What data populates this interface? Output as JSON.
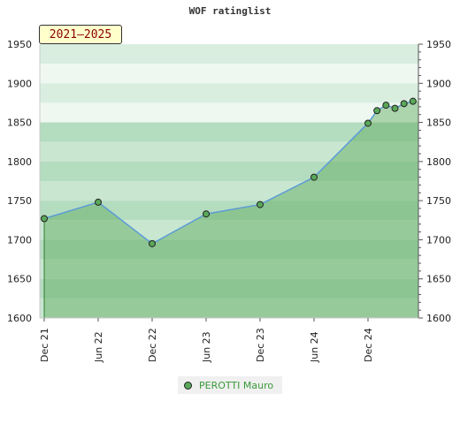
{
  "chart_data": {
    "type": "area",
    "title": "WOF ratinglist",
    "period_label": "2021–2025",
    "ylim": [
      1600,
      1950
    ],
    "y_ticks": [
      "1600",
      "1650",
      "1700",
      "1750",
      "1800",
      "1850",
      "1900",
      "1950"
    ],
    "x_tick_labels": [
      "Dec 21",
      "Jun 22",
      "Dec 22",
      "Jun 23",
      "Dec 23",
      "Jun 24",
      "Dec 24"
    ],
    "grid": true,
    "legend_position": "bottom-center",
    "series": [
      {
        "name": "PEROTTI Mauro",
        "color": "#5aa85a",
        "x": [
          "2021-12",
          "2022-06",
          "2022-12",
          "2023-06",
          "2023-12",
          "2024-06",
          "2024-12",
          "2025-01",
          "2025-02",
          "2025-03",
          "2025-04",
          "2025-05"
        ],
        "values": [
          1727,
          1748,
          1695,
          1733,
          1745,
          1780,
          1849,
          1865,
          1872,
          1868,
          1874,
          1877
        ]
      }
    ]
  }
}
